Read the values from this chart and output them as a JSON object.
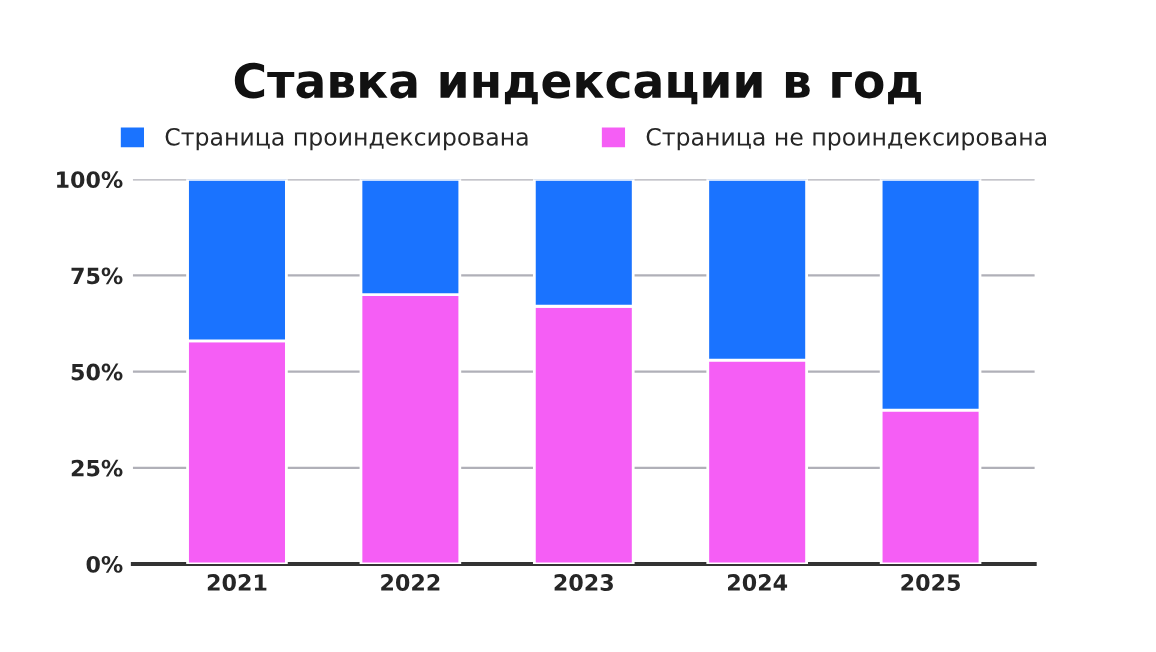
{
  "chart_data": {
    "type": "bar",
    "title": "Ставка индексации в год",
    "stacked": true,
    "categories": [
      "2021",
      "2022",
      "2023",
      "2024",
      "2025"
    ],
    "series": [
      {
        "name": "Страница не проиндексирована",
        "color": "#f55ef5",
        "values": [
          58,
          70,
          67,
          53,
          40
        ]
      },
      {
        "name": "Страница проиндексирована",
        "color": "#1a73ff",
        "values": [
          42,
          30,
          33,
          47,
          60
        ]
      }
    ],
    "ylim": [
      0,
      100
    ],
    "yticks": [
      {
        "value": 0,
        "label": "0%"
      },
      {
        "value": 25,
        "label": "25%"
      },
      {
        "value": 50,
        "label": "50%"
      },
      {
        "value": 75,
        "label": "75%"
      },
      {
        "value": 100,
        "label": "100%"
      }
    ],
    "grid": "y",
    "legend": "top"
  }
}
